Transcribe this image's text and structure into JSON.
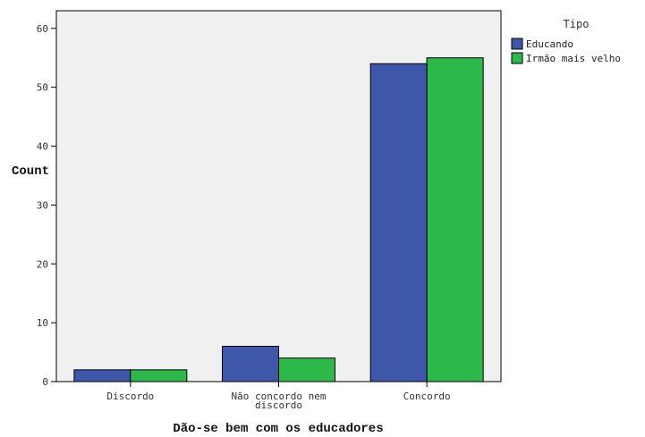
{
  "chart_data": {
    "type": "bar",
    "xlabel": "Dão-se bem com os educadores",
    "ylabel": "Count",
    "ylim": [
      0,
      60
    ],
    "yticks": [
      0,
      10,
      20,
      30,
      40,
      50,
      60
    ],
    "categories": [
      [
        "Discordo"
      ],
      [
        "Não concordo nem",
        "discordo"
      ],
      [
        "Concordo"
      ]
    ],
    "series": [
      {
        "name": "Educando",
        "color": "#3f57a8",
        "values": [
          2,
          6,
          54
        ]
      },
      {
        "name": "Irmão mais velho",
        "color": "#2db84a",
        "values": [
          2,
          4,
          55
        ]
      }
    ],
    "legend": {
      "title": "Tipo",
      "position": "top-right"
    },
    "plot_background": "#f0f0f0",
    "grid": false
  }
}
